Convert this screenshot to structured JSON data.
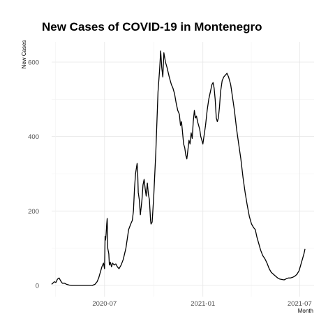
{
  "chart_data": {
    "type": "line",
    "title": "New Cases of COVID-19 in Montenegro",
    "xlabel": "Month",
    "ylabel": "New Cases",
    "xlim": [
      "2020-03-24",
      "2021-07-28"
    ],
    "ylim": [
      0,
      640
    ],
    "grid": true,
    "x_ticks": [
      {
        "date": "2020-07-01",
        "label": "2020-07"
      },
      {
        "date": "2021-01-01",
        "label": "2021-01"
      },
      {
        "date": "2021-07-01",
        "label": "2021-07"
      }
    ],
    "y_ticks": [
      0,
      200,
      400,
      600
    ],
    "series": [
      {
        "color": "#000000",
        "points": [
          [
            "2020-03-24",
            3
          ],
          [
            "2020-03-29",
            10
          ],
          [
            "2020-04-01",
            8
          ],
          [
            "2020-04-04",
            17
          ],
          [
            "2020-04-07",
            20
          ],
          [
            "2020-04-10",
            12
          ],
          [
            "2020-04-13",
            6
          ],
          [
            "2020-04-17",
            6
          ],
          [
            "2020-04-21",
            3
          ],
          [
            "2020-04-26",
            1
          ],
          [
            "2020-05-01",
            0
          ],
          [
            "2020-05-15",
            0
          ],
          [
            "2020-06-01",
            0
          ],
          [
            "2020-06-08",
            0
          ],
          [
            "2020-06-13",
            3
          ],
          [
            "2020-06-17",
            10
          ],
          [
            "2020-06-20",
            20
          ],
          [
            "2020-06-23",
            35
          ],
          [
            "2020-06-26",
            50
          ],
          [
            "2020-06-29",
            60
          ],
          [
            "2020-07-01",
            45
          ],
          [
            "2020-07-02",
            132
          ],
          [
            "2020-07-03",
            122
          ],
          [
            "2020-07-04",
            140
          ],
          [
            "2020-07-05",
            165
          ],
          [
            "2020-07-06",
            180
          ],
          [
            "2020-07-07",
            100
          ],
          [
            "2020-07-09",
            85
          ],
          [
            "2020-07-10",
            55
          ],
          [
            "2020-07-12",
            62
          ],
          [
            "2020-07-14",
            50
          ],
          [
            "2020-07-16",
            60
          ],
          [
            "2020-07-19",
            55
          ],
          [
            "2020-07-22",
            58
          ],
          [
            "2020-07-25",
            50
          ],
          [
            "2020-07-28",
            45
          ],
          [
            "2020-08-01",
            55
          ],
          [
            "2020-08-05",
            70
          ],
          [
            "2020-08-10",
            100
          ],
          [
            "2020-08-15",
            150
          ],
          [
            "2020-08-19",
            165
          ],
          [
            "2020-08-22",
            175
          ],
          [
            "2020-08-24",
            200
          ],
          [
            "2020-08-26",
            260
          ],
          [
            "2020-08-28",
            300
          ],
          [
            "2020-08-30",
            320
          ],
          [
            "2020-08-31",
            328
          ],
          [
            "2020-09-01",
            300
          ],
          [
            "2020-09-02",
            250
          ],
          [
            "2020-09-04",
            230
          ],
          [
            "2020-09-06",
            190
          ],
          [
            "2020-09-09",
            230
          ],
          [
            "2020-09-11",
            270
          ],
          [
            "2020-09-13",
            285
          ],
          [
            "2020-09-15",
            260
          ],
          [
            "2020-09-17",
            240
          ],
          [
            "2020-09-19",
            275
          ],
          [
            "2020-09-21",
            245
          ],
          [
            "2020-09-23",
            230
          ],
          [
            "2020-09-25",
            175
          ],
          [
            "2020-09-26",
            165
          ],
          [
            "2020-09-28",
            170
          ],
          [
            "2020-10-01",
            240
          ],
          [
            "2020-10-05",
            360
          ],
          [
            "2020-10-09",
            520
          ],
          [
            "2020-10-12",
            580
          ],
          [
            "2020-10-14",
            630
          ],
          [
            "2020-10-16",
            585
          ],
          [
            "2020-10-18",
            560
          ],
          [
            "2020-10-20",
            625
          ],
          [
            "2020-10-23",
            600
          ],
          [
            "2020-10-26",
            585
          ],
          [
            "2020-10-30",
            560
          ],
          [
            "2020-11-03",
            540
          ],
          [
            "2020-11-06",
            530
          ],
          [
            "2020-11-09",
            515
          ],
          [
            "2020-11-12",
            490
          ],
          [
            "2020-11-15",
            470
          ],
          [
            "2020-11-18",
            460
          ],
          [
            "2020-11-20",
            430
          ],
          [
            "2020-11-22",
            440
          ],
          [
            "2020-11-24",
            410
          ],
          [
            "2020-11-26",
            380
          ],
          [
            "2020-11-28",
            370
          ],
          [
            "2020-11-30",
            350
          ],
          [
            "2020-12-02",
            340
          ],
          [
            "2020-12-04",
            365
          ],
          [
            "2020-12-06",
            390
          ],
          [
            "2020-12-08",
            380
          ],
          [
            "2020-12-10",
            410
          ],
          [
            "2020-12-12",
            395
          ],
          [
            "2020-12-14",
            440
          ],
          [
            "2020-12-16",
            470
          ],
          [
            "2020-12-18",
            450
          ],
          [
            "2020-12-20",
            455
          ],
          [
            "2020-12-22",
            440
          ],
          [
            "2020-12-24",
            430
          ],
          [
            "2020-12-26",
            420
          ],
          [
            "2020-12-28",
            400
          ],
          [
            "2020-12-30",
            390
          ],
          [
            "2021-01-01",
            380
          ],
          [
            "2021-01-03",
            400
          ],
          [
            "2021-01-06",
            430
          ],
          [
            "2021-01-09",
            470
          ],
          [
            "2021-01-12",
            500
          ],
          [
            "2021-01-15",
            520
          ],
          [
            "2021-01-18",
            540
          ],
          [
            "2021-01-20",
            545
          ],
          [
            "2021-01-22",
            530
          ],
          [
            "2021-01-24",
            500
          ],
          [
            "2021-01-26",
            450
          ],
          [
            "2021-01-28",
            440
          ],
          [
            "2021-01-30",
            450
          ],
          [
            "2021-02-01",
            480
          ],
          [
            "2021-02-03",
            520
          ],
          [
            "2021-02-06",
            550
          ],
          [
            "2021-02-09",
            560
          ],
          [
            "2021-02-12",
            565
          ],
          [
            "2021-02-15",
            570
          ],
          [
            "2021-02-18",
            560
          ],
          [
            "2021-02-22",
            540
          ],
          [
            "2021-02-26",
            500
          ],
          [
            "2021-03-01",
            470
          ],
          [
            "2021-03-05",
            420
          ],
          [
            "2021-03-09",
            380
          ],
          [
            "2021-03-13",
            340
          ],
          [
            "2021-03-17",
            290
          ],
          [
            "2021-03-21",
            250
          ],
          [
            "2021-03-25",
            215
          ],
          [
            "2021-03-29",
            185
          ],
          [
            "2021-04-02",
            165
          ],
          [
            "2021-04-06",
            155
          ],
          [
            "2021-04-09",
            150
          ],
          [
            "2021-04-12",
            130
          ],
          [
            "2021-04-15",
            115
          ],
          [
            "2021-04-19",
            95
          ],
          [
            "2021-04-23",
            80
          ],
          [
            "2021-04-27",
            72
          ],
          [
            "2021-05-01",
            60
          ],
          [
            "2021-05-05",
            45
          ],
          [
            "2021-05-09",
            35
          ],
          [
            "2021-05-13",
            30
          ],
          [
            "2021-05-17",
            25
          ],
          [
            "2021-05-21",
            20
          ],
          [
            "2021-05-25",
            17
          ],
          [
            "2021-05-29",
            16
          ],
          [
            "2021-06-02",
            15
          ],
          [
            "2021-06-06",
            18
          ],
          [
            "2021-06-10",
            20
          ],
          [
            "2021-06-14",
            20
          ],
          [
            "2021-06-18",
            22
          ],
          [
            "2021-06-22",
            25
          ],
          [
            "2021-06-26",
            30
          ],
          [
            "2021-06-30",
            40
          ],
          [
            "2021-07-03",
            55
          ],
          [
            "2021-07-06",
            70
          ],
          [
            "2021-07-09",
            85
          ],
          [
            "2021-07-11",
            98
          ]
        ]
      }
    ]
  }
}
